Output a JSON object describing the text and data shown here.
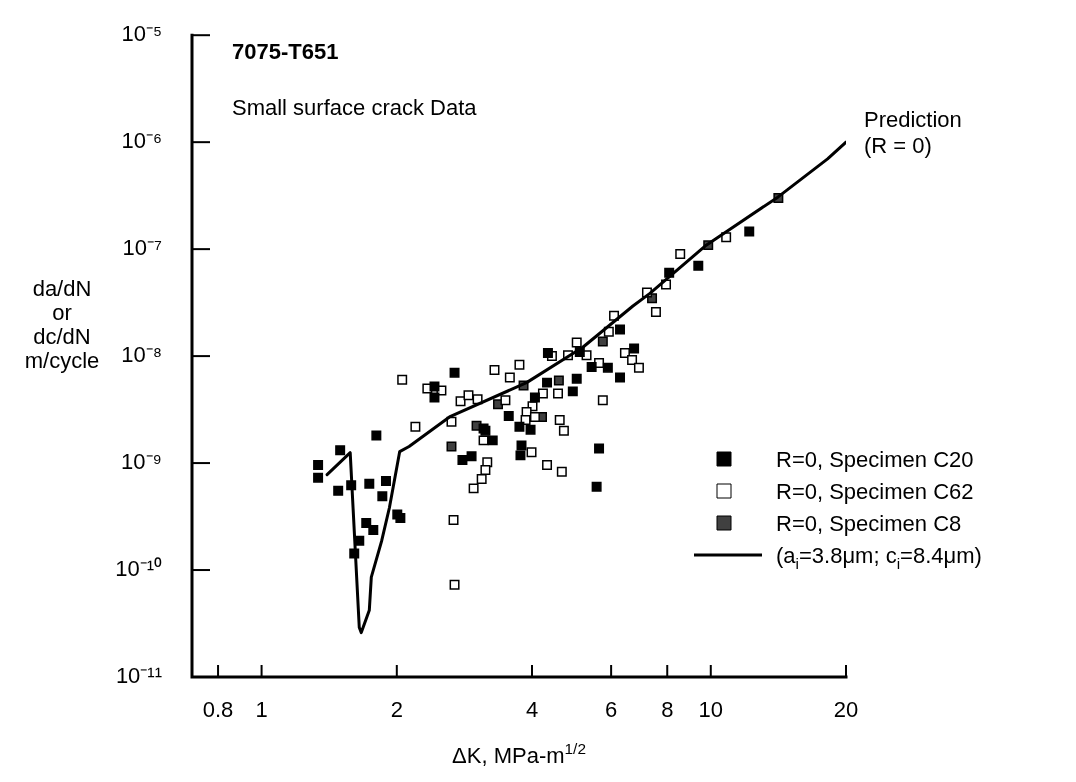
{
  "chart_data": {
    "type": "scatter",
    "title": "7075-T651",
    "xlabel": "ΔK, MPa-m$^{1/2}$",
    "ylabel": "da/dN\nor\ndc/dN\nm/cycle",
    "annotations": [
      "Small surface crack Data",
      "Prediction\n(R = 0)"
    ],
    "log": "xy",
    "legend": "bottom right",
    "marker": "square",
    "xlim": [
      0.7,
      20
    ],
    "xticks": [
      0.8,
      1,
      2,
      4,
      6,
      8,
      10,
      20
    ],
    "ylim": [
      1e-11,
      1e-05
    ],
    "yticks": [
      {
        "value": 1e-11,
        "label": "10⁻¹¹"
      },
      {
        "value": 1e-10,
        "label": "10⁻¹⁰"
      },
      {
        "value": 1e-09,
        "label": "10⁻⁹"
      },
      {
        "value": 1e-08,
        "label": "10⁻⁸"
      },
      {
        "value": 1e-07,
        "label": "10⁻⁷"
      },
      {
        "value": 1e-06,
        "label": "10⁻⁶"
      },
      {
        "value": 1e-05,
        "label": "10⁻⁵"
      }
    ],
    "series": [
      {
        "name": "R=0, Specimen C20",
        "color": "#000000",
        "x": [
          1.336,
          1.336,
          1.496,
          1.481,
          1.583,
          1.801,
          1.737,
          1.892,
          1.857,
          2.005,
          2.037,
          1.71,
          1.773,
          1.65,
          1.608,
          2.426,
          2.426,
          2.689,
          3.27,
          3.12,
          2.934,
          2.8,
          3.55,
          3.75,
          3.97,
          3.15,
          3.79,
          3.77,
          4.06,
          4.32,
          5.03,
          4.93,
          4.34,
          5.11,
          5.43,
          5.9,
          6.28,
          6.28,
          6.75,
          5.64,
          5.57,
          12.18,
          9.38,
          8.08
        ],
        "values": [
          9.6e-10,
          7.3e-10,
          1.32e-09,
          5.5e-10,
          6.2e-10,
          1.81e-09,
          6.4e-10,
          6.8e-10,
          4.9e-10,
          3.3e-10,
          3.06e-10,
          2.75e-10,
          2.37e-10,
          1.88e-10,
          1.43e-10,
          4.1e-09,
          5.2e-09,
          7e-09,
          1.63e-09,
          2.1e-09,
          1.16e-09,
          1.07e-09,
          2.75e-09,
          2.18e-09,
          2.05e-09,
          2.01e-09,
          1.46e-09,
          1.18e-09,
          4.1e-09,
          5.65e-09,
          6.15e-09,
          4.68e-09,
          1.07e-08,
          1.09e-08,
          7.9e-09,
          7.8e-09,
          6.3e-09,
          1.77e-08,
          1.18e-08,
          1.37e-09,
          6e-10,
          1.46e-07,
          6.98e-08,
          6e-08
        ]
      },
      {
        "name": "R=0, Specimen C62",
        "color": "#ffffff",
        "x": [
          2.2,
          2.647,
          2.773,
          2.888,
          3.026,
          2.339,
          2.514,
          3.12,
          3.18,
          3.15,
          3.09,
          2.965,
          2.675,
          2.689,
          2.056,
          3.3,
          3.75,
          3.57,
          3.49,
          4.23,
          4.57,
          4.01,
          3.89,
          3.87,
          4.06,
          4.61,
          4.71,
          3.99,
          4.32,
          4.66,
          5.75,
          4.43,
          4.81,
          5.03,
          5.29,
          5.64,
          6.09,
          6.44,
          6.68,
          6.92,
          7.55,
          5.93,
          7.21,
          7.95,
          8.55,
          10.82
        ],
        "values": [
          2.18e-09,
          2.43e-09,
          3.78e-09,
          4.3e-09,
          3.95e-09,
          4.98e-09,
          4.77e-09,
          1.63e-09,
          1.02e-09,
          8.6e-10,
          7.1e-10,
          5.8e-10,
          2.94e-10,
          7.3e-11,
          6e-09,
          7.4e-09,
          8.3e-09,
          6.3e-09,
          3.86e-09,
          4.48e-09,
          4.48e-09,
          3.4e-09,
          3e-09,
          2.53e-09,
          2.7e-09,
          2.53e-09,
          2.01e-09,
          1.26e-09,
          9.6e-10,
          8.3e-10,
          3.86e-09,
          1e-08,
          1.02e-08,
          1.34e-08,
          1.02e-08,
          8.6e-09,
          2.38e-08,
          1.07e-08,
          9.2e-09,
          7.8e-09,
          2.59e-08,
          1.69e-08,
          3.94e-08,
          4.67e-08,
          9e-08,
          1.29e-07
        ]
      },
      {
        "name": "R=0, Specimen C8",
        "color": "#404040",
        "x": [
          5.75,
          4.59,
          3.83,
          3.36,
          3.01,
          4.21,
          2.647,
          9.87,
          7.4,
          14.14
        ],
        "values": [
          1.37e-08,
          5.9e-09,
          5.3e-09,
          3.55e-09,
          2.23e-09,
          2.7e-09,
          1.43e-09,
          1.09e-07,
          3.48e-08,
          3e-07
        ]
      },
      {
        "name": "(a$_{i}$=3.8μm; c$_{i}$=8.4μm)",
        "type": "line",
        "color": "#000000",
        "marker": "none",
        "line_style": "solid",
        "x": [
          1.399,
          1.575,
          1.65,
          1.667,
          1.737,
          1.755,
          1.85,
          1.925,
          2.03,
          2.13,
          2.62,
          3.89,
          5.19,
          6.71,
          7.32,
          9.77,
          14.1,
          18.2,
          20
        ],
        "values": [
          7.8e-10,
          1.25e-09,
          2.9e-11,
          2.6e-11,
          4.2e-11,
          8.6e-11,
          1.86e-10,
          3.8e-10,
          1.28e-09,
          1.43e-09,
          2.7e-09,
          5.65e-09,
          1.21e-08,
          2.94e-08,
          3.86e-08,
          1.09e-07,
          3.06e-07,
          6.98e-07,
          1e-06
        ]
      }
    ]
  }
}
